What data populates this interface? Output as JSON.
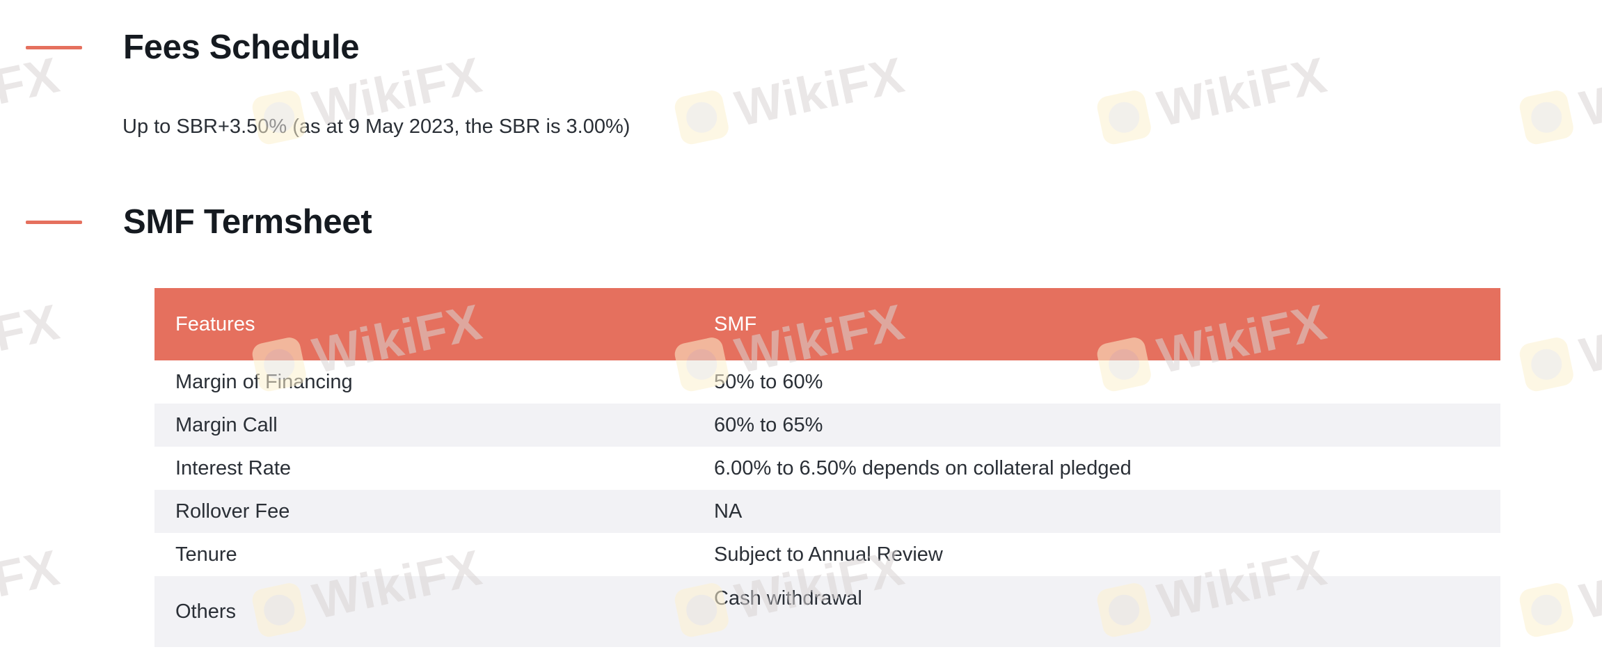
{
  "fees": {
    "title": "Fees Schedule",
    "text": "Up to SBR+3.50% (as at 9 May 2023, the SBR is 3.00%)"
  },
  "termsheet": {
    "title": "SMF Termsheet",
    "headers": {
      "feature": "Features",
      "smf": "SMF"
    },
    "rows": [
      {
        "feature": "Margin of Financing",
        "smf": "50% to 60%"
      },
      {
        "feature": "Margin Call",
        "smf": "60% to 65%"
      },
      {
        "feature": "Interest Rate",
        "smf": "6.00% to 6.50% depends on collateral pledged"
      },
      {
        "feature": "Rollover Fee",
        "smf": "NA"
      },
      {
        "feature": "Tenure",
        "smf": "Subject to Annual Review"
      },
      {
        "feature": "Others",
        "smf": "Cash withdrawal"
      }
    ]
  },
  "watermark": {
    "text": "WikiFX",
    "logo_icon": "wikifx-logo-icon"
  },
  "colors": {
    "accent": "#e5705e",
    "header_text": "#ffffff",
    "stripe": "#f2f2f5",
    "title": "#151a20",
    "body": "#2a2f36"
  }
}
